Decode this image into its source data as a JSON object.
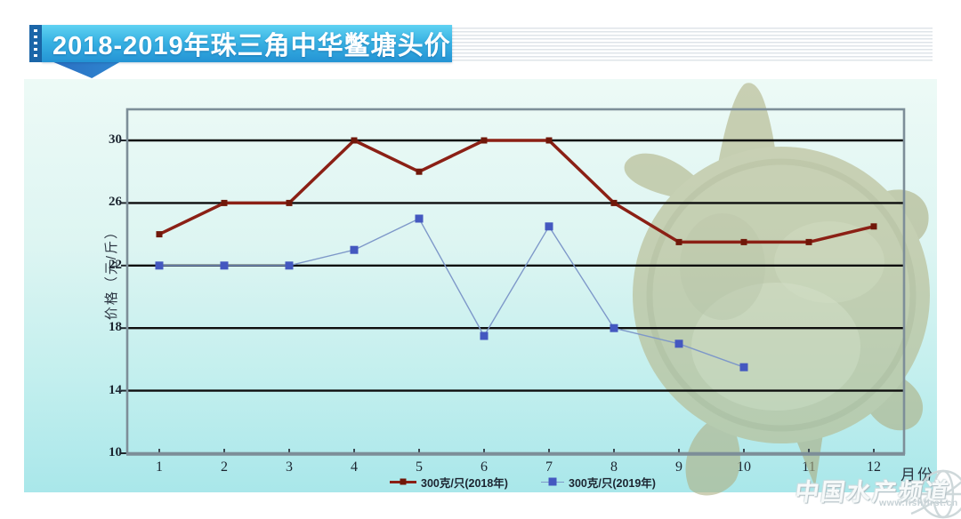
{
  "title": {
    "text": "2018-2019年珠三角中华鳖塘头价"
  },
  "chart_data": {
    "type": "line",
    "categories": [
      "1",
      "2",
      "3",
      "4",
      "5",
      "6",
      "7",
      "8",
      "9",
      "10",
      "11",
      "12"
    ],
    "xlabel": "月份",
    "ylabel": "价格（元/斤）",
    "ylim": [
      10,
      30
    ],
    "yticks": [
      10,
      14,
      18,
      22,
      26,
      30
    ],
    "grid": true,
    "legend_position": "bottom-center",
    "series": [
      {
        "name": "300克/只(2018年)",
        "line_color": "#8b2015",
        "marker_color": "#701709",
        "line_width": 3.5,
        "marker_size": 7,
        "values": [
          24,
          26,
          26,
          30,
          28,
          30,
          30,
          26,
          23.5,
          23.5,
          23.5,
          24.5
        ]
      },
      {
        "name": "300克/只(2019年)",
        "line_color": "#7e98c9",
        "marker_color": "#4458c0",
        "line_width": 1.4,
        "marker_size": 9,
        "values": [
          22,
          22,
          22,
          23,
          25,
          17.5,
          24.5,
          18,
          17,
          15.5,
          null,
          null
        ]
      }
    ]
  },
  "watermark": {
    "name": "中国水产频道",
    "url": "www.fishfirst.cn"
  },
  "colors": {
    "banner_top": "#60d2f2",
    "banner_bottom": "#2493d4",
    "panel_top": "#edfaf6",
    "panel_bottom": "#a9e7ea",
    "gridline": "#0e0e0e",
    "plot_border": "#7d8e98"
  }
}
